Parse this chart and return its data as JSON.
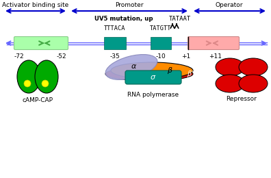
{
  "bg_color": "#ffffff",
  "arrow_color": "#0000cc",
  "dna_line_color": "#6666ff",
  "teal_box_color": "#009988",
  "light_green_box_color": "#aaffaa",
  "light_pink_box_color": "#ffaaaa",
  "green_protein_color": "#00aa00",
  "yellow_dot_color": "#ffff00",
  "red_protein_color": "#dd0000",
  "orange_protein_color": "#ff8c00",
  "lightblue_protein_color": "#aaaadd",
  "teal_sigma_color": "#009988",
  "red_beta_color": "#cc1100",
  "seq_35": "TTTACA",
  "seq_10": "TATGTT",
  "uv5_seq": "TATAAT",
  "uv5_label": "UV5 mutation, up",
  "label_activator": "Activator binding site",
  "label_promoter": "Promoter",
  "label_operator": "Operator",
  "label_camp": "cAMP-CAP",
  "label_rna_pol": "RNA polymerase",
  "label_repressor": "Repressor"
}
